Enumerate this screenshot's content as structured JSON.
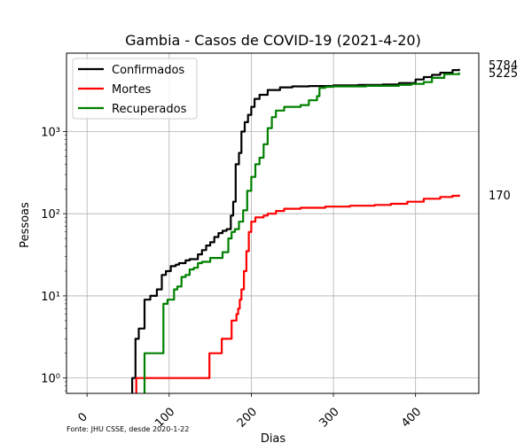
{
  "chart_data": {
    "type": "line",
    "title": "Gambia - Casos de COVID-19 (2021-4-20)",
    "xlabel": "Dias",
    "ylabel": "Pessoas",
    "yscale": "log",
    "xlim": [
      -25,
      477
    ],
    "ylim": [
      0.65,
      9000
    ],
    "x_ticks": [
      0,
      100,
      200,
      300,
      400
    ],
    "x_tick_labels": [
      "0",
      "100",
      "200",
      "300",
      "400"
    ],
    "y_ticks": [
      1,
      10,
      100,
      1000
    ],
    "y_tick_labels": [
      "10⁰",
      "10¹",
      "10²",
      "10³"
    ],
    "grid": true,
    "legend_position": "top-left",
    "source_note": "Fonte: JHU CSSE, desde 2020-1-22",
    "series": [
      {
        "name": "Confirmados",
        "color": "#000000",
        "end_label": "5784",
        "points": [
          [
            55,
            1
          ],
          [
            58,
            1
          ],
          [
            59,
            3
          ],
          [
            62,
            3
          ],
          [
            63,
            4
          ],
          [
            69,
            4
          ],
          [
            70,
            9
          ],
          [
            76,
            9
          ],
          [
            77,
            10
          ],
          [
            84,
            10
          ],
          [
            85,
            12
          ],
          [
            90,
            12
          ],
          [
            91,
            18
          ],
          [
            95,
            18
          ],
          [
            96,
            20
          ],
          [
            100,
            20
          ],
          [
            102,
            23
          ],
          [
            108,
            24
          ],
          [
            112,
            25
          ],
          [
            118,
            25
          ],
          [
            120,
            27
          ],
          [
            125,
            28
          ],
          [
            130,
            28
          ],
          [
            135,
            32
          ],
          [
            140,
            36
          ],
          [
            145,
            41
          ],
          [
            150,
            45
          ],
          [
            155,
            52
          ],
          [
            160,
            58
          ],
          [
            165,
            62
          ],
          [
            170,
            65
          ],
          [
            175,
            95
          ],
          [
            178,
            140
          ],
          [
            181,
            400
          ],
          [
            185,
            550
          ],
          [
            188,
            1000
          ],
          [
            192,
            1300
          ],
          [
            196,
            1600
          ],
          [
            200,
            2000
          ],
          [
            204,
            2500
          ],
          [
            210,
            2800
          ],
          [
            220,
            3200
          ],
          [
            235,
            3450
          ],
          [
            250,
            3550
          ],
          [
            270,
            3580
          ],
          [
            300,
            3650
          ],
          [
            330,
            3700
          ],
          [
            360,
            3750
          ],
          [
            380,
            3900
          ],
          [
            400,
            4300
          ],
          [
            410,
            4600
          ],
          [
            420,
            4900
          ],
          [
            430,
            5200
          ],
          [
            445,
            5600
          ],
          [
            453,
            5784
          ]
        ]
      },
      {
        "name": "Mortes",
        "color": "#ff0000",
        "end_label": "170",
        "points": [
          [
            60,
            1
          ],
          [
            148,
            1
          ],
          [
            149,
            2
          ],
          [
            163,
            2
          ],
          [
            164,
            3
          ],
          [
            175,
            3
          ],
          [
            176,
            5
          ],
          [
            180,
            5
          ],
          [
            182,
            6
          ],
          [
            184,
            7
          ],
          [
            186,
            9
          ],
          [
            188,
            12
          ],
          [
            191,
            20
          ],
          [
            194,
            35
          ],
          [
            197,
            60
          ],
          [
            200,
            80
          ],
          [
            205,
            90
          ],
          [
            215,
            95
          ],
          [
            220,
            100
          ],
          [
            230,
            108
          ],
          [
            240,
            115
          ],
          [
            260,
            118
          ],
          [
            290,
            122
          ],
          [
            320,
            125
          ],
          [
            350,
            128
          ],
          [
            370,
            132
          ],
          [
            390,
            140
          ],
          [
            410,
            152
          ],
          [
            430,
            160
          ],
          [
            445,
            165
          ],
          [
            453,
            170
          ]
        ]
      },
      {
        "name": "Recuperados",
        "color": "#008000",
        "end_label": "5225",
        "points": [
          [
            70,
            2
          ],
          [
            90,
            2
          ],
          [
            93,
            8
          ],
          [
            98,
            9
          ],
          [
            104,
            9
          ],
          [
            106,
            12
          ],
          [
            110,
            13
          ],
          [
            115,
            17
          ],
          [
            120,
            18
          ],
          [
            125,
            21
          ],
          [
            130,
            22
          ],
          [
            135,
            25
          ],
          [
            140,
            26
          ],
          [
            148,
            26
          ],
          [
            150,
            29
          ],
          [
            163,
            29
          ],
          [
            165,
            34
          ],
          [
            168,
            34
          ],
          [
            172,
            50
          ],
          [
            176,
            60
          ],
          [
            180,
            65
          ],
          [
            185,
            80
          ],
          [
            190,
            110
          ],
          [
            195,
            190
          ],
          [
            200,
            280
          ],
          [
            205,
            400
          ],
          [
            210,
            480
          ],
          [
            215,
            700
          ],
          [
            220,
            1100
          ],
          [
            225,
            1500
          ],
          [
            230,
            1800
          ],
          [
            240,
            2000
          ],
          [
            260,
            2100
          ],
          [
            270,
            2400
          ],
          [
            280,
            2700
          ],
          [
            283,
            3400
          ],
          [
            290,
            3500
          ],
          [
            300,
            3550
          ],
          [
            340,
            3600
          ],
          [
            380,
            3700
          ],
          [
            395,
            3800
          ],
          [
            410,
            4000
          ],
          [
            420,
            4500
          ],
          [
            435,
            5000
          ],
          [
            453,
            5225
          ]
        ]
      }
    ]
  }
}
